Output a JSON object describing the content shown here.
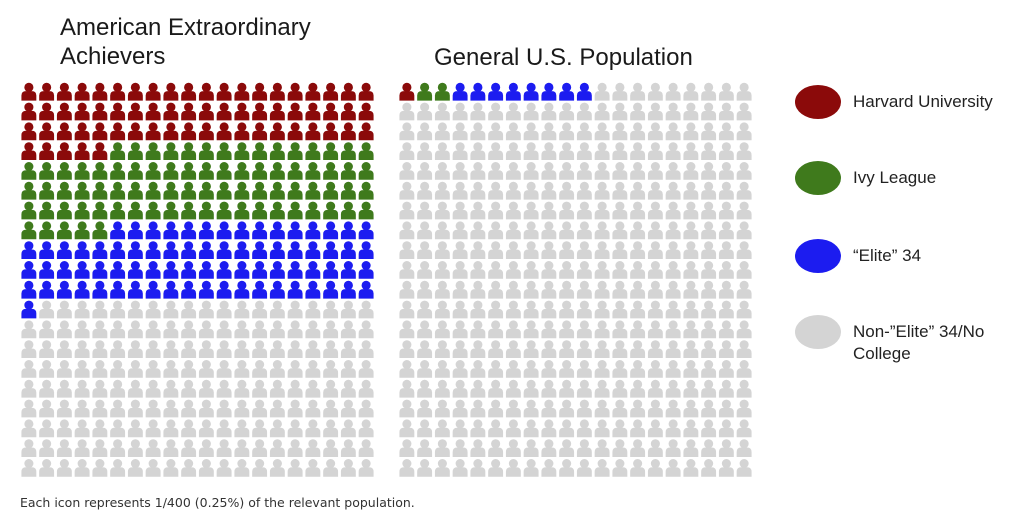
{
  "chart_data": [
    {
      "type": "waffle",
      "title": "American Extraordinary Achievers",
      "grid": {
        "columns": 20,
        "rows": 20
      },
      "total_icons": 400,
      "counts": {
        "Harvard University": 65,
        "Ivy League": 80,
        "“Elite” 34": 76,
        "Non-”Elite” 34/No College": 179
      }
    },
    {
      "type": "waffle",
      "title": "General U.S. Population",
      "grid": {
        "columns": 20,
        "rows": 20
      },
      "total_icons": 400,
      "counts": {
        "Harvard University": 1,
        "Ivy League": 2,
        "“Elite” 34": 8,
        "Non-”Elite” 34/No College": 389
      }
    }
  ],
  "legend": [
    {
      "label": "Harvard University",
      "color": "#8b0a0a"
    },
    {
      "label": "Ivy League",
      "color": "#3f7a1c"
    },
    {
      "label": "“Elite” 34",
      "color": "#1c1cf0"
    },
    {
      "label": "Non-”Elite” 34/No College",
      "color": "#d4d4d4"
    }
  ],
  "icon_name": "person-icon",
  "footnote": "Each icon represents 1/400 (0.25%) of the relevant population."
}
